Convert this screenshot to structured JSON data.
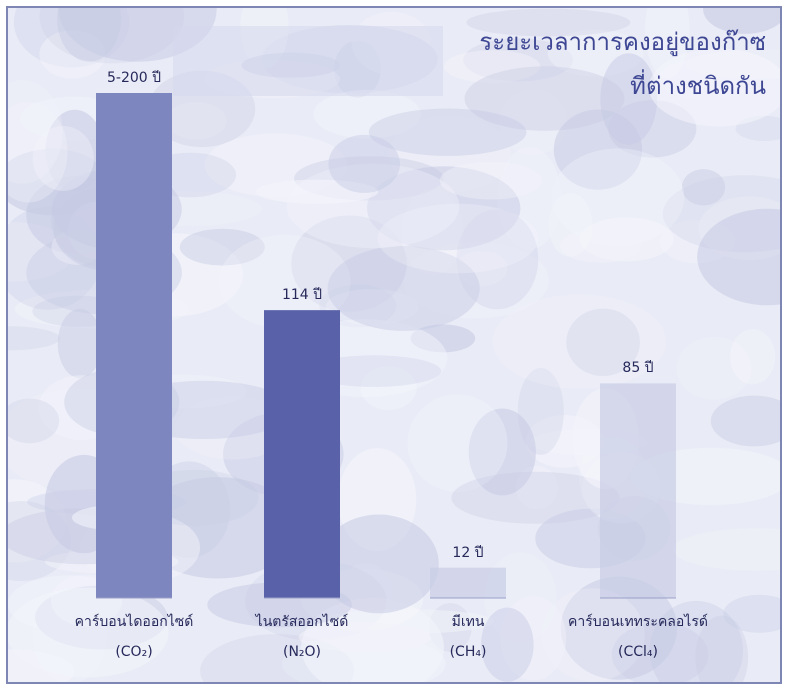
{
  "chart_data": {
    "type": "bar",
    "title": "ระยะเวลาการคงอยู่ของก๊าซ ที่ต่างชนิดกัน",
    "title_lines": [
      "ระยะเวลาการคงอยู่ของก๊าซ",
      "ที่ต่างชนิดกัน"
    ],
    "categories": [
      {
        "name": "คาร์บอนไดออกไซด์",
        "formula": "(CO₂)"
      },
      {
        "name": "ไนตรัสออกไซด์",
        "formula": "(N₂O)"
      },
      {
        "name": "มีเทน",
        "formula": "(CH₄)"
      },
      {
        "name": "คาร์บอนเททระคลอไรด์",
        "formula": "(CCl₄)"
      }
    ],
    "values": [
      200,
      114,
      12,
      85
    ],
    "value_labels": [
      "5-200 ปี",
      "114 ปี",
      "12 ปี",
      "85 ปี"
    ],
    "ylim": [
      0,
      200
    ],
    "grid": false,
    "legend": "none",
    "colors": {
      "bar_dark": "#5961a8",
      "bar_medium": "#7e86c0",
      "bar_light": "#c9cde6",
      "text": "#26295a",
      "title": "#3e4794",
      "frame": "#7e86b4"
    },
    "bar_color_keys": [
      "bar_medium",
      "bar_dark",
      "bar_light",
      "bar_light"
    ]
  }
}
